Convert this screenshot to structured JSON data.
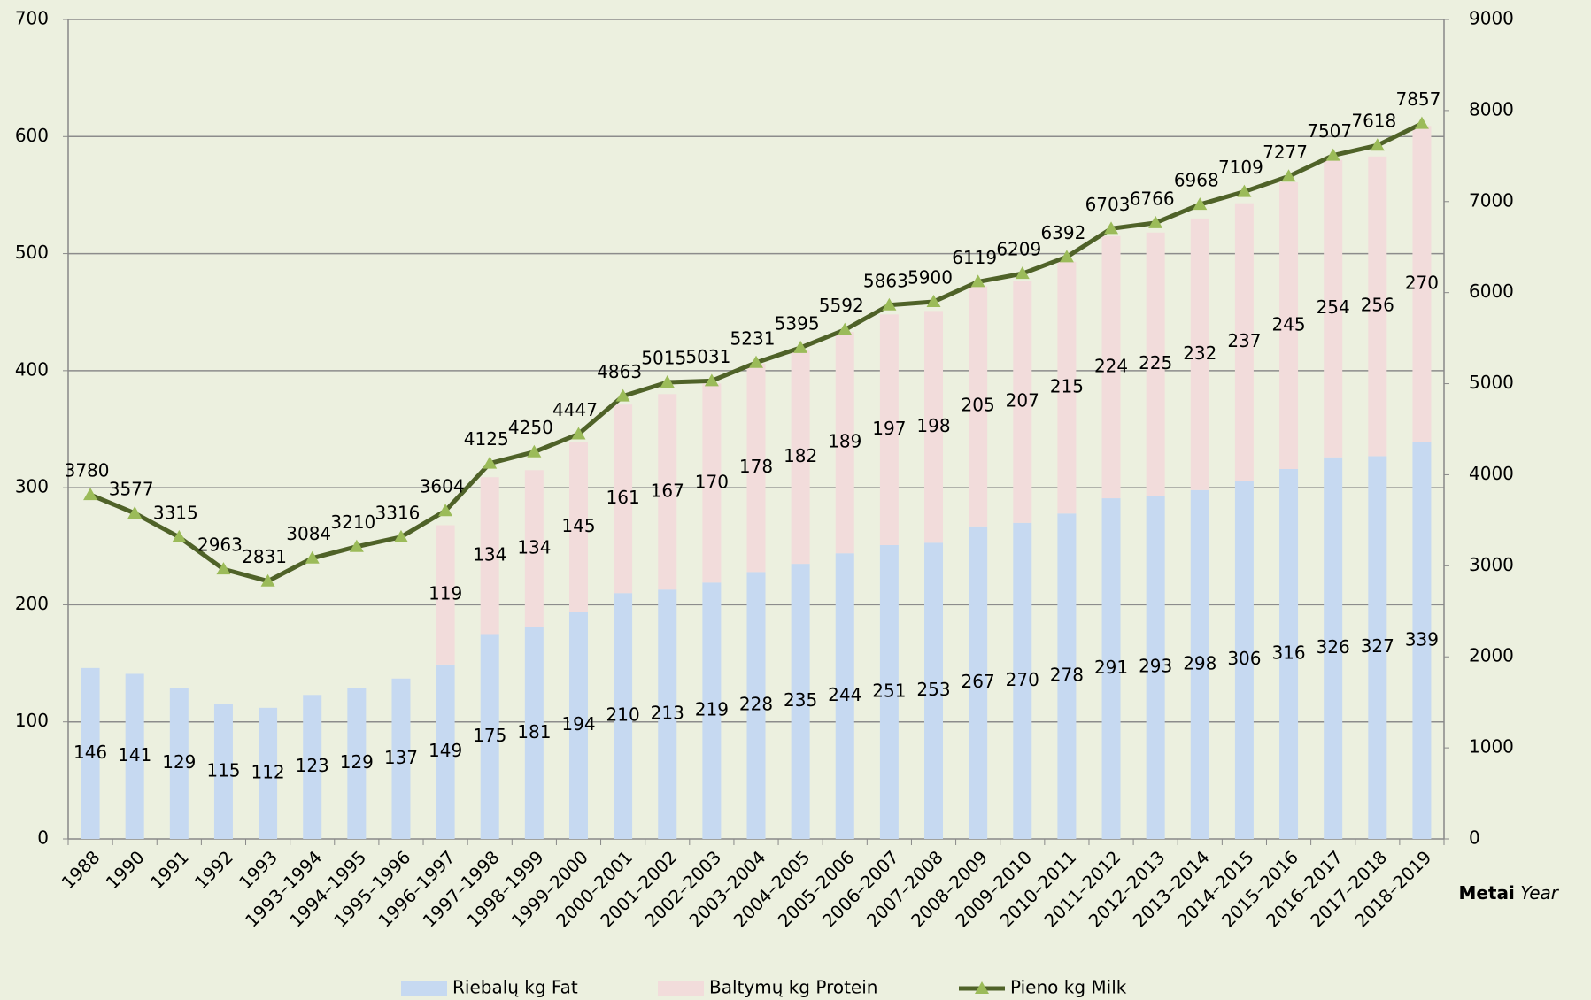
{
  "chart_data": {
    "type": "bar-line",
    "categories": [
      "1988",
      "1990",
      "1991",
      "1992",
      "1993",
      "1993–1994",
      "1994–1995",
      "1995–1996",
      "1996–1997",
      "1997–1998",
      "1998–1999",
      "1999–2000",
      "2000–2001",
      "2001–2002",
      "2002–2003",
      "2003–2004",
      "2004–2005",
      "2005–2006",
      "2006–2007",
      "2007–2008",
      "2008–2009",
      "2009–2010",
      "2010–2011",
      "2011–2012",
      "2012–2013",
      "2013–2014",
      "2014–2015",
      "2015–2016",
      "2016–2017",
      "2017–2018",
      "2018–2019"
    ],
    "series": [
      {
        "name": "Riebalų kg  Fat",
        "color": "#c6d9f1",
        "kind": "bar",
        "values": [
          146,
          141,
          129,
          115,
          112,
          123,
          129,
          137,
          149,
          175,
          181,
          194,
          210,
          213,
          219,
          228,
          235,
          244,
          251,
          253,
          267,
          270,
          278,
          291,
          293,
          298,
          306,
          316,
          326,
          327,
          339
        ]
      },
      {
        "name": "Baltymų kg  Protein",
        "color": "#f2dcdb",
        "kind": "bar",
        "values": [
          null,
          null,
          null,
          null,
          null,
          null,
          null,
          null,
          119,
          134,
          134,
          145,
          161,
          167,
          170,
          178,
          182,
          189,
          197,
          198,
          205,
          207,
          215,
          224,
          225,
          232,
          237,
          245,
          254,
          256,
          270
        ]
      },
      {
        "name": "Pieno kg  Milk",
        "color": "#4f6228",
        "marker_color": "#9bbb59",
        "kind": "line",
        "axis": "y2",
        "values": [
          3780,
          3577,
          3315,
          2963,
          2831,
          3084,
          3210,
          3316,
          3604,
          4125,
          4250,
          4447,
          4863,
          5015,
          5031,
          5231,
          5395,
          5592,
          5863,
          5900,
          6119,
          6209,
          6392,
          6703,
          6766,
          6968,
          7109,
          7277,
          7507,
          7618,
          7857
        ]
      }
    ],
    "x_label": {
      "bold": "Metai",
      "italic": "Year"
    },
    "ylim": [
      0,
      700
    ],
    "yticks": [
      0,
      100,
      200,
      300,
      400,
      500,
      600,
      700
    ],
    "y2lim": [
      0,
      9000
    ],
    "y2ticks": [
      0,
      1000,
      2000,
      3000,
      4000,
      5000,
      6000,
      7000,
      8000,
      9000
    ],
    "grid": true,
    "stacked": true,
    "legend": "bottom"
  }
}
